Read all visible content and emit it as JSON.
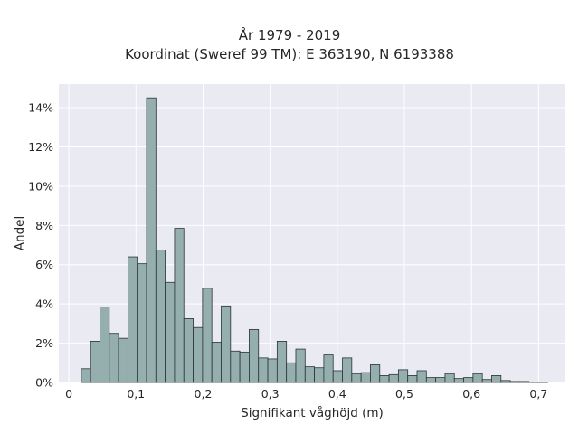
{
  "chart_data": {
    "type": "bar",
    "title": "År 1979 - 2019",
    "subtitle": "Koordinat (Sweref 99 TM): E 363190, N 6193388",
    "xlabel": "Signifikant våghöjd (m)",
    "ylabel": "Andel",
    "xlim": [
      -0.015,
      0.74
    ],
    "ylim": [
      0,
      15.2
    ],
    "x_ticks": [
      0,
      0.1,
      0.2,
      0.3,
      0.4,
      0.5,
      0.6,
      0.7
    ],
    "x_tick_labels": [
      "0",
      "0,1",
      "0,2",
      "0,3",
      "0,4",
      "0,5",
      "0,6",
      "0,7"
    ],
    "y_ticks": [
      0,
      2,
      4,
      6,
      8,
      10,
      12,
      14
    ],
    "y_tick_labels": [
      "0%",
      "2%",
      "4%",
      "6%",
      "8%",
      "10%",
      "12%",
      "14%"
    ],
    "grid": true,
    "bin_start": 0.0185,
    "bin_width": 0.0139,
    "values": [
      0.7,
      2.1,
      3.85,
      2.5,
      2.25,
      6.4,
      6.05,
      14.5,
      6.75,
      5.1,
      7.85,
      3.25,
      2.8,
      4.8,
      2.05,
      3.9,
      1.6,
      1.55,
      2.7,
      1.25,
      1.2,
      2.1,
      1.0,
      1.7,
      0.8,
      0.75,
      1.4,
      0.6,
      1.25,
      0.45,
      0.5,
      0.9,
      0.35,
      0.4,
      0.65,
      0.35,
      0.6,
      0.25,
      0.25,
      0.45,
      0.2,
      0.25,
      0.45,
      0.15,
      0.35,
      0.1,
      0.05,
      0.05,
      0.02,
      0.02
    ]
  },
  "colors": {
    "bar_fill": "#95aeae",
    "bar_edge": "#2b3434",
    "plot_bg": "#eaeaf2",
    "grid": "#ffffff",
    "text": "#262626"
  }
}
